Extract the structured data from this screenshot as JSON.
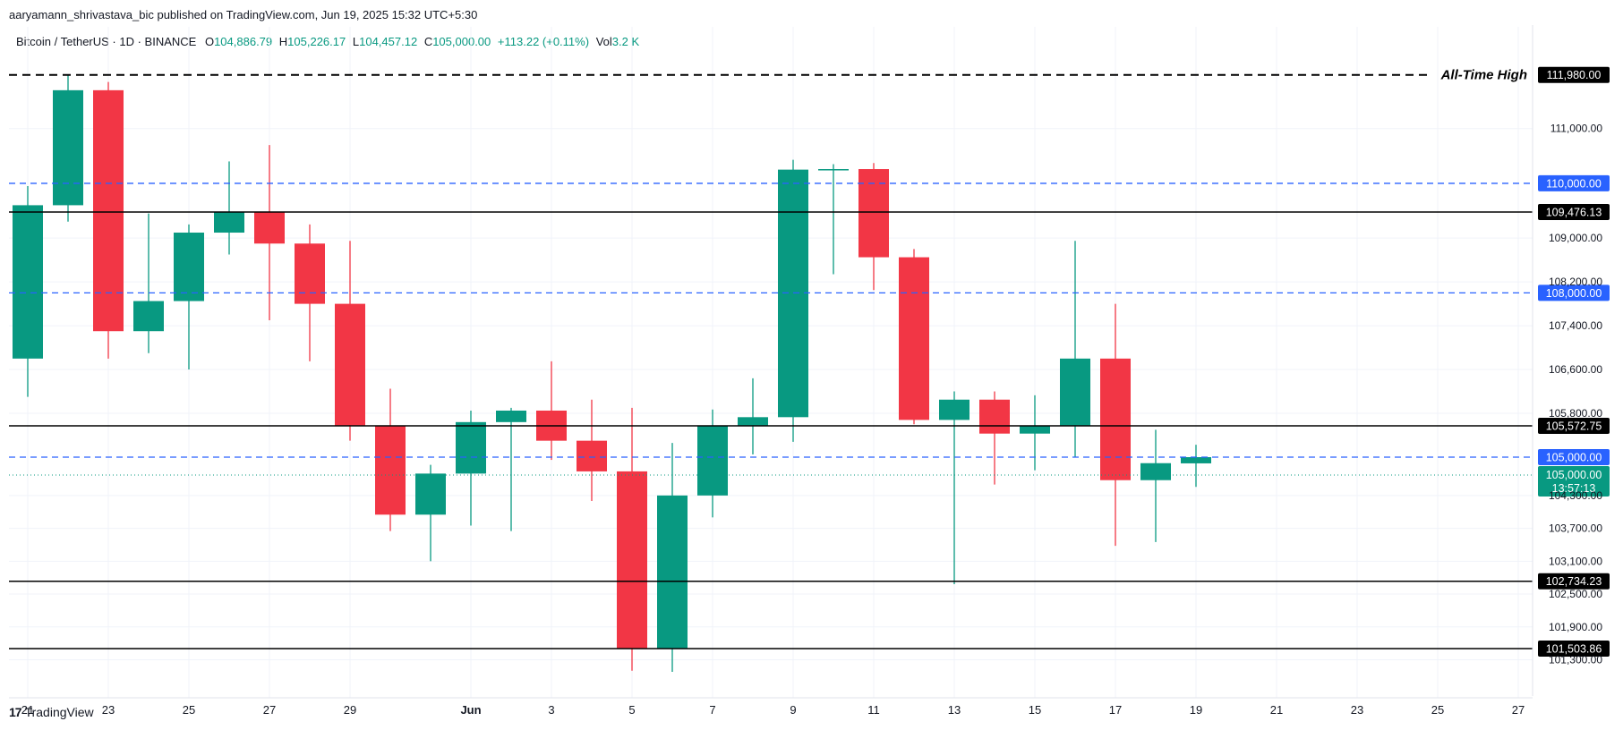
{
  "header": {
    "publisher_line": "aaryamann_shrivastava_bic published on TradingView.com, Jun 19, 2025 15:32 UTC+5:30"
  },
  "legend": {
    "symbol": "Bitcoin / TetherUS · 1D · BINANCE",
    "open_label": "O",
    "open": "104,886.79",
    "high_label": "H",
    "high": "105,226.17",
    "low_label": "L",
    "low": "104,457.12",
    "close_label": "C",
    "close": "105,000.00",
    "change": "+113.22 (+0.11%)",
    "vol_label": "Vol",
    "vol": "3.2 K"
  },
  "footer": {
    "logo_mark": "17",
    "logo_text": "TradingView"
  },
  "colors": {
    "up": "#089981",
    "down": "#f23645",
    "dash_blue": "#2962ff",
    "line_black": "#000000"
  },
  "chart_data": {
    "type": "candlestick",
    "title": "",
    "ylim": [
      100900,
      112400
    ],
    "y_ticks": [
      111000,
      109000,
      108200,
      107400,
      106600,
      105800,
      104300,
      103700,
      103100,
      102500,
      101900,
      101300
    ],
    "y_tick_labels": [
      "111,000.00",
      "109,000.00",
      "108,200.00",
      "107,400.00",
      "106,600.00",
      "105,800.00",
      "104,300.00",
      "103,700.00",
      "103,100.00",
      "102,500.00",
      "101,900.00",
      "101,300.00"
    ],
    "x_tick_labels": [
      "21",
      "23",
      "25",
      "27",
      "29",
      "Jun",
      "3",
      "5",
      "7",
      "9",
      "11",
      "13",
      "15",
      "17",
      "19",
      "21",
      "23",
      "25",
      "27"
    ],
    "x_tick_index": [
      0,
      2,
      4,
      6,
      8,
      11,
      13,
      15,
      17,
      19,
      21,
      23,
      25,
      27,
      29,
      31,
      33,
      35,
      37
    ],
    "candles": [
      {
        "date": "May 21",
        "o": 106800,
        "h": 109950,
        "l": 106100,
        "c": 109600
      },
      {
        "date": "May 22",
        "o": 109600,
        "h": 111980,
        "l": 109300,
        "c": 111700
      },
      {
        "date": "May 23",
        "o": 111700,
        "h": 111850,
        "l": 106800,
        "c": 107300
      },
      {
        "date": "May 24",
        "o": 107300,
        "h": 109450,
        "l": 106900,
        "c": 107850
      },
      {
        "date": "May 25",
        "o": 107850,
        "h": 109250,
        "l": 106600,
        "c": 109100
      },
      {
        "date": "May 26",
        "o": 109100,
        "h": 110400,
        "l": 108700,
        "c": 109480
      },
      {
        "date": "May 27",
        "o": 109480,
        "h": 110700,
        "l": 107500,
        "c": 108900
      },
      {
        "date": "May 28",
        "o": 108900,
        "h": 109250,
        "l": 106750,
        "c": 107800
      },
      {
        "date": "May 29",
        "o": 107800,
        "h": 108950,
        "l": 105300,
        "c": 105580
      },
      {
        "date": "May 30",
        "o": 105580,
        "h": 106250,
        "l": 103650,
        "c": 103950
      },
      {
        "date": "May 31",
        "o": 103950,
        "h": 104860,
        "l": 103100,
        "c": 104700
      },
      {
        "date": "Jun 1",
        "o": 104700,
        "h": 105850,
        "l": 103750,
        "c": 105640
      },
      {
        "date": "Jun 2",
        "o": 105640,
        "h": 105900,
        "l": 103650,
        "c": 105850
      },
      {
        "date": "Jun 3",
        "o": 105850,
        "h": 106750,
        "l": 104950,
        "c": 105300
      },
      {
        "date": "Jun 4",
        "o": 105300,
        "h": 106050,
        "l": 104200,
        "c": 104740
      },
      {
        "date": "Jun 5",
        "o": 104740,
        "h": 105900,
        "l": 101100,
        "c": 101500
      },
      {
        "date": "Jun 6",
        "o": 101500,
        "h": 105260,
        "l": 101080,
        "c": 104300
      },
      {
        "date": "Jun 7",
        "o": 104300,
        "h": 105870,
        "l": 103900,
        "c": 105580
      },
      {
        "date": "Jun 8",
        "o": 105580,
        "h": 106440,
        "l": 105050,
        "c": 105730
      },
      {
        "date": "Jun 9",
        "o": 105730,
        "h": 110430,
        "l": 105280,
        "c": 110250
      },
      {
        "date": "Jun 10",
        "o": 110250,
        "h": 110350,
        "l": 108340,
        "c": 110260
      },
      {
        "date": "Jun 11",
        "o": 110260,
        "h": 110370,
        "l": 108050,
        "c": 108650
      },
      {
        "date": "Jun 12",
        "o": 108650,
        "h": 108800,
        "l": 105600,
        "c": 105680
      },
      {
        "date": "Jun 13",
        "o": 105680,
        "h": 106200,
        "l": 102680,
        "c": 106050
      },
      {
        "date": "Jun 14",
        "o": 106050,
        "h": 106200,
        "l": 104500,
        "c": 105430
      },
      {
        "date": "Jun 15",
        "o": 105430,
        "h": 106130,
        "l": 104760,
        "c": 105580
      },
      {
        "date": "Jun 16",
        "o": 105580,
        "h": 108950,
        "l": 105000,
        "c": 106800
      },
      {
        "date": "Jun 17",
        "o": 106800,
        "h": 107800,
        "l": 103380,
        "c": 104580
      },
      {
        "date": "Jun 18",
        "o": 104580,
        "h": 105500,
        "l": 103450,
        "c": 104890
      },
      {
        "date": "Jun 19",
        "o": 104886.79,
        "h": 105226.17,
        "l": 104457.12,
        "c": 105000
      }
    ],
    "horizontal_lines": [
      {
        "value": 111980,
        "label": "111,980.00",
        "style": "dashed",
        "color": "#000000",
        "annotation": "All-Time High"
      },
      {
        "value": 110000,
        "label": "110,000.00",
        "style": "dashed",
        "color": "#2962ff"
      },
      {
        "value": 109476.13,
        "label": "109,476.13",
        "style": "solid",
        "color": "#000000"
      },
      {
        "value": 108000,
        "label": "108,000.00",
        "style": "dashed",
        "color": "#2962ff"
      },
      {
        "value": 105572.75,
        "label": "105,572.75",
        "style": "solid",
        "color": "#000000"
      },
      {
        "value": 105000,
        "label": "105,000.00",
        "style": "dashed",
        "color": "#2962ff"
      },
      {
        "value": 102734.23,
        "label": "102,734.23",
        "style": "solid",
        "color": "#000000"
      },
      {
        "value": 101503.86,
        "label": "101,503.86",
        "style": "solid",
        "color": "#000000"
      }
    ],
    "last_price": {
      "value": 105000,
      "label": "105,000.00",
      "countdown": "13:57:13"
    },
    "grid": true
  }
}
